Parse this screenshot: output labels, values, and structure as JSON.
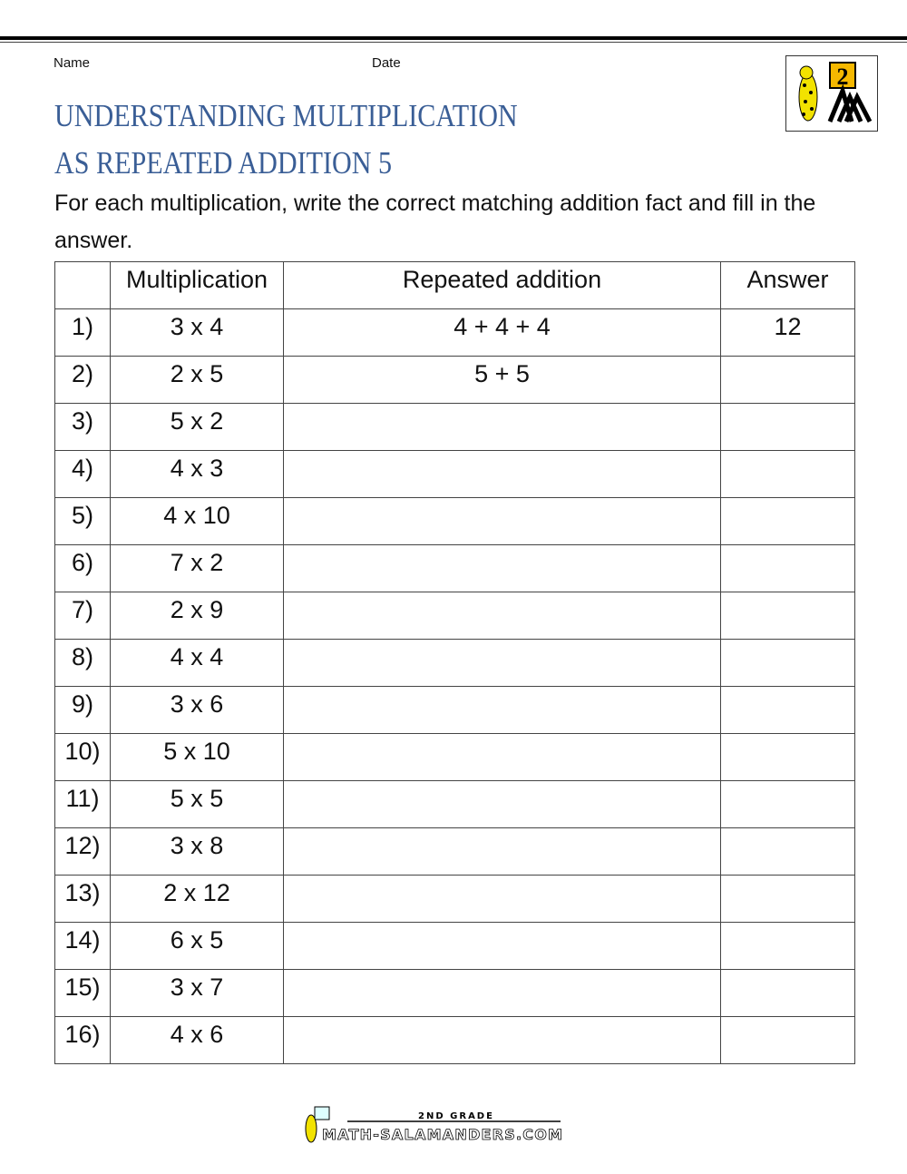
{
  "header": {
    "name_label": "Name",
    "date_label": "Date"
  },
  "title": {
    "line1": "UNDERSTANDING MULTIPLICATION",
    "line2": "AS REPEATED ADDITION 5"
  },
  "instructions": "For each multiplication, write the correct matching addition fact and fill in the answer.",
  "logo": {
    "text": "2"
  },
  "table": {
    "headers": [
      "",
      "Multiplication",
      "Repeated addition",
      "Answer"
    ],
    "rows": [
      {
        "num": "1)",
        "mult": "3 x 4",
        "add": "4 + 4 + 4",
        "answer": "12"
      },
      {
        "num": "2)",
        "mult": "2 x 5",
        "add": "5 + 5",
        "answer": ""
      },
      {
        "num": "3)",
        "mult": "5 x 2",
        "add": "",
        "answer": ""
      },
      {
        "num": "4)",
        "mult": "4 x 3",
        "add": "",
        "answer": ""
      },
      {
        "num": "5)",
        "mult": "4 x 10",
        "add": "",
        "answer": ""
      },
      {
        "num": "6)",
        "mult": "7 x 2",
        "add": "",
        "answer": ""
      },
      {
        "num": "7)",
        "mult": "2 x 9",
        "add": "",
        "answer": ""
      },
      {
        "num": "8)",
        "mult": "4 x 4",
        "add": "",
        "answer": ""
      },
      {
        "num": "9)",
        "mult": "3 x 6",
        "add": "",
        "answer": ""
      },
      {
        "num": "10)",
        "mult": "5 x 10",
        "add": "",
        "answer": ""
      },
      {
        "num": "11)",
        "mult": "5 x 5",
        "add": "",
        "answer": ""
      },
      {
        "num": "12)",
        "mult": "3 x 8",
        "add": "",
        "answer": ""
      },
      {
        "num": "13)",
        "mult": "2 x 12",
        "add": "",
        "answer": ""
      },
      {
        "num": "14)",
        "mult": "6 x 5",
        "add": "",
        "answer": ""
      },
      {
        "num": "15)",
        "mult": "3 x 7",
        "add": "",
        "answer": ""
      },
      {
        "num": "16)",
        "mult": "4 x 6",
        "add": "",
        "answer": ""
      }
    ]
  },
  "footer": {
    "grade": "2ND GRADE",
    "site": "MATH-SALAMANDERS.COM"
  },
  "colors": {
    "title": "#3a5e96",
    "logo_yellow": "#f5b800"
  }
}
